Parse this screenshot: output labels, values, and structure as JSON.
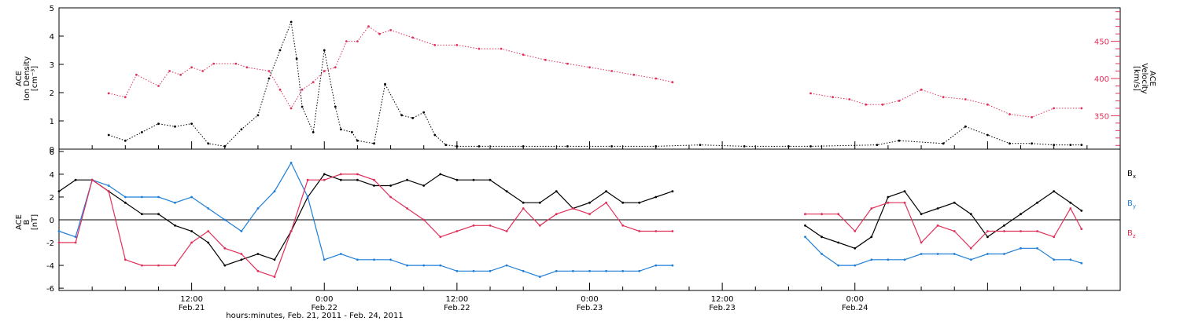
{
  "colors": {
    "axis": "#000000",
    "density": "#000000",
    "velocity": "#e0305a",
    "bx": "#000000",
    "by": "#1f7fd8",
    "bz": "#e0305a"
  },
  "chart_data": [
    {
      "type": "scatter",
      "panel": "top",
      "ylabel": [
        "ACE",
        "Ion Density",
        "[cm⁻³]"
      ],
      "ylim": [
        0,
        5
      ],
      "yticks": [
        0,
        1,
        2,
        3,
        4,
        5
      ],
      "xlim_hours": [
        0,
        96
      ],
      "right_axis": {
        "label": [
          "ACE",
          "Velocity",
          "[km/s]"
        ],
        "ylim": [
          305,
          495
        ],
        "ticks": [
          350,
          400,
          450
        ]
      },
      "series": [
        {
          "key": "density",
          "x": [
            4.5,
            6,
            7.5,
            9,
            10.5,
            12,
            13.5,
            15,
            16.5,
            18,
            19,
            20,
            21,
            21.5,
            22,
            23,
            24,
            25,
            25.5,
            26.5,
            27,
            28.5,
            29.5,
            31,
            32,
            33,
            34,
            35,
            36,
            38,
            42,
            46,
            50,
            54,
            58,
            62,
            66,
            68,
            74,
            76,
            80,
            82,
            84,
            86,
            88,
            90,
            91.5,
            92.5
          ],
          "values": [
            0.5,
            0.3,
            0.6,
            0.9,
            0.8,
            0.9,
            0.2,
            0.1,
            0.7,
            1.2,
            2.5,
            3.5,
            4.5,
            3.2,
            1.5,
            0.6,
            3.5,
            1.5,
            0.7,
            0.6,
            0.3,
            0.2,
            2.3,
            1.2,
            1.1,
            1.3,
            0.5,
            0.15,
            0.1,
            0.1,
            0.1,
            0.1,
            0.1,
            0.1,
            0.15,
            0.1,
            0.1,
            0.1,
            0.15,
            0.3,
            0.2,
            0.8,
            0.5,
            0.2,
            0.2,
            0.15,
            0.15,
            0.15
          ]
        },
        {
          "key": "velocity",
          "axis": "right",
          "x": [
            4.5,
            6,
            7,
            9,
            10,
            11,
            12,
            13,
            14,
            16,
            17,
            19,
            20,
            21,
            22,
            23,
            24,
            25,
            26,
            27,
            28,
            29,
            30,
            32,
            34,
            36,
            38,
            40,
            42,
            44,
            46,
            48,
            50,
            52,
            54,
            55.5,
            68,
            70,
            71.5,
            73,
            74.5,
            76,
            78,
            80,
            82,
            84,
            86,
            88,
            90,
            92.5
          ],
          "values": [
            380,
            375,
            405,
            390,
            410,
            405,
            415,
            410,
            420,
            420,
            415,
            410,
            385,
            360,
            385,
            395,
            410,
            415,
            450,
            450,
            470,
            460,
            465,
            455,
            445,
            445,
            440,
            440,
            432,
            425,
            420,
            415,
            410,
            405,
            400,
            395,
            380,
            375,
            372,
            365,
            365,
            370,
            385,
            375,
            372,
            365,
            352,
            348,
            360,
            360
          ]
        }
      ]
    },
    {
      "type": "line",
      "panel": "bottom",
      "ylabel": [
        "ACE",
        "B",
        "[nT]"
      ],
      "ylim": [
        -6.2,
        6.2
      ],
      "yticks": [
        -6,
        -4,
        -2,
        0,
        2,
        4,
        6
      ],
      "xlim_hours": [
        0,
        96
      ],
      "legend": [
        "Bx",
        "By",
        "Bz"
      ],
      "series": [
        {
          "name": "Bx",
          "key": "bx",
          "x": [
            0,
            1.5,
            3,
            4.5,
            6,
            7.5,
            9,
            10.5,
            12,
            13.5,
            15,
            16.5,
            18,
            19.5,
            21,
            22.5,
            24,
            25.5,
            27,
            28.5,
            30,
            31.5,
            33,
            34.5,
            36,
            37.5,
            39,
            40.5,
            42,
            43.5,
            45,
            46.5,
            48,
            49.5,
            51,
            52.5,
            54,
            55.5,
            67.5,
            69,
            70.5,
            72,
            73.5,
            75,
            76.5,
            78,
            79.5,
            81,
            82.5,
            84,
            85.5,
            87,
            88.5,
            90,
            91.5,
            92.5
          ],
          "values": [
            2.5,
            3.5,
            3.5,
            2.5,
            1.5,
            0.5,
            0.5,
            -0.5,
            -1,
            -2,
            -4,
            -3.5,
            -3,
            -3.5,
            -1,
            2,
            4,
            3.5,
            3.5,
            3,
            3,
            3.5,
            3,
            4,
            3.5,
            3.5,
            3.5,
            2.5,
            1.5,
            1.5,
            2.5,
            1,
            1.5,
            2.5,
            1.5,
            1.5,
            2,
            2.5,
            -0.5,
            -1.5,
            -2,
            -2.5,
            -1.5,
            2,
            2.5,
            0.5,
            1,
            1.5,
            0.5,
            -1.5,
            -0.5,
            0.5,
            1.5,
            2.5,
            1.5,
            0.8
          ]
        },
        {
          "name": "By",
          "key": "by",
          "x": [
            0,
            1.5,
            3,
            4.5,
            6,
            7.5,
            9,
            10.5,
            12,
            13.5,
            15,
            16.5,
            18,
            19.5,
            21,
            22.5,
            24,
            25.5,
            27,
            28.5,
            30,
            31.5,
            33,
            34.5,
            36,
            37.5,
            39,
            40.5,
            42,
            43.5,
            45,
            46.5,
            48,
            49.5,
            51,
            52.5,
            54,
            55.5,
            67.5,
            69,
            70.5,
            72,
            73.5,
            75,
            76.5,
            78,
            79.5,
            81,
            82.5,
            84,
            85.5,
            87,
            88.5,
            90,
            91.5,
            92.5
          ],
          "values": [
            -1,
            -1.5,
            3.5,
            3,
            2,
            2,
            2,
            1.5,
            2,
            1,
            0,
            -1,
            1,
            2.5,
            5,
            2,
            -3.5,
            -3,
            -3.5,
            -3.5,
            -3.5,
            -4,
            -4,
            -4,
            -4.5,
            -4.5,
            -4.5,
            -4,
            -4.5,
            -5,
            -4.5,
            -4.5,
            -4.5,
            -4.5,
            -4.5,
            -4.5,
            -4,
            -4,
            -1.5,
            -3,
            -4,
            -4,
            -3.5,
            -3.5,
            -3.5,
            -3,
            -3,
            -3,
            -3.5,
            -3,
            -3,
            -2.5,
            -2.5,
            -3.5,
            -3.5,
            -3.8
          ]
        },
        {
          "name": "Bz",
          "key": "bz",
          "x": [
            0,
            1.5,
            3,
            4.5,
            6,
            7.5,
            9,
            10.5,
            12,
            13.5,
            15,
            16.5,
            18,
            19.5,
            21,
            22.5,
            24,
            25.5,
            27,
            28.5,
            30,
            31.5,
            33,
            34.5,
            36,
            37.5,
            39,
            40.5,
            42,
            43.5,
            45,
            46.5,
            48,
            49.5,
            51,
            52.5,
            54,
            55.5,
            67.5,
            69,
            70.5,
            72,
            73.5,
            75,
            76.5,
            78,
            79.5,
            81,
            82.5,
            84,
            85.5,
            87,
            88.5,
            90,
            91.5,
            92.5
          ],
          "values": [
            -2,
            -2,
            3.5,
            2.5,
            -3.5,
            -4,
            -4,
            -4,
            -2,
            -1,
            -2.5,
            -3,
            -4.5,
            -5,
            -1,
            3.5,
            3.5,
            4,
            4,
            3.5,
            2,
            1,
            0,
            -1.5,
            -1,
            -0.5,
            -0.5,
            -1,
            1,
            -0.5,
            0.5,
            1,
            0.5,
            1.5,
            -0.5,
            -1,
            -1,
            -1,
            0.5,
            0.5,
            0.5,
            -1,
            1,
            1.5,
            1.5,
            -2,
            -0.5,
            -1,
            -2.5,
            -1,
            -1,
            -1,
            -1,
            -1.5,
            1,
            -0.8
          ]
        }
      ]
    }
  ],
  "x_axis": {
    "ticks": [
      {
        "hours": 12,
        "time": "12:00",
        "date": "Feb.21"
      },
      {
        "hours": 24,
        "time": "0:00",
        "date": "Feb.22"
      },
      {
        "hours": 36,
        "time": "12:00",
        "date": "Feb.22"
      },
      {
        "hours": 48,
        "time": "0:00",
        "date": "Feb.23"
      },
      {
        "hours": 60,
        "time": "12:00",
        "date": "Feb.23"
      },
      {
        "hours": 72,
        "time": "0:00",
        "date": "Feb.24"
      }
    ],
    "label": "hours:minutes, Feb. 21, 2011 - Feb. 24, 2011"
  },
  "legend_labels": {
    "bx": "B",
    "bx_sub": "x",
    "by": "B",
    "by_sub": "y",
    "bz": "B",
    "bz_sub": "z"
  }
}
